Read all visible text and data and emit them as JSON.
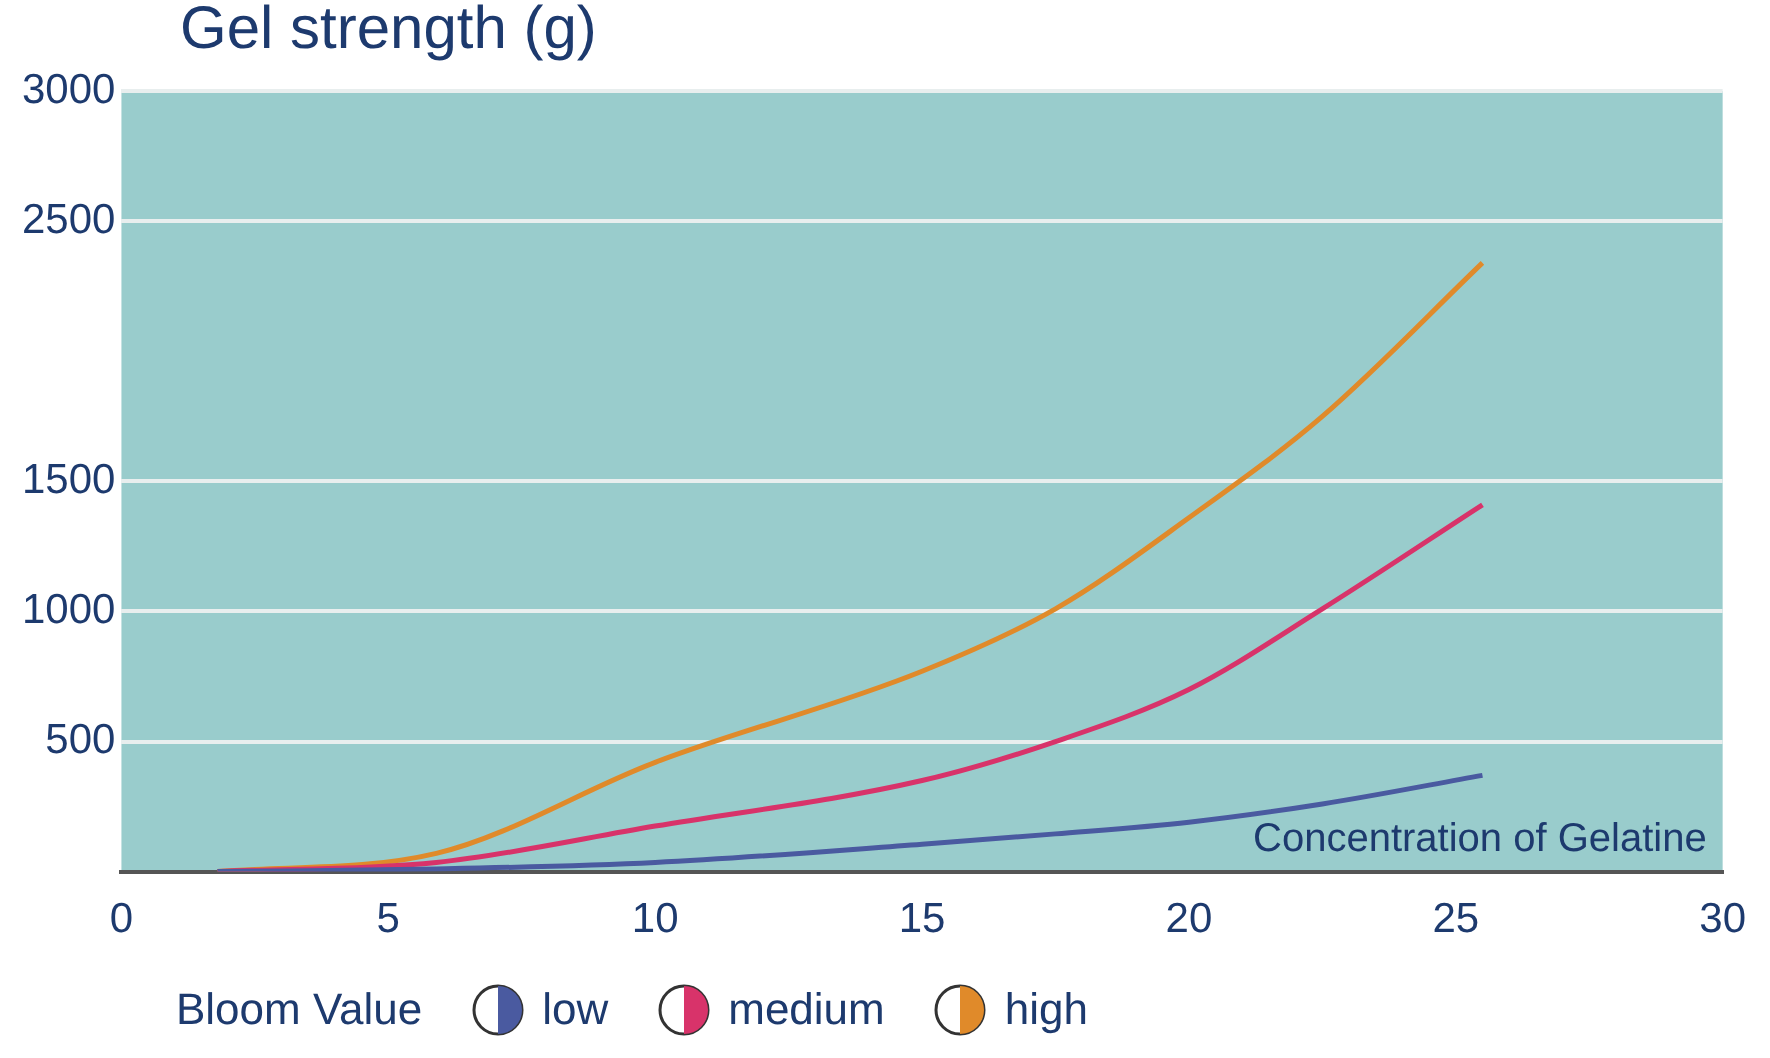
{
  "chart_data": {
    "type": "line",
    "title": "Gel strength (g)",
    "xlabel": "Concentration of Gelatine",
    "legend_title": "Bloom Value",
    "x": [
      1.8,
      5.9,
      10,
      15,
      17.5,
      20,
      22.5,
      25.5
    ],
    "series": [
      {
        "name": "low",
        "color": "#4a5aa0",
        "values": [
          0,
          10,
          35,
          105,
          145,
          190,
          260,
          370
        ]
      },
      {
        "name": "medium",
        "color": "#d8336a",
        "values": [
          0,
          35,
          175,
          350,
          500,
          700,
          1010,
          1410
        ]
      },
      {
        "name": "high",
        "color": "#e08a2a",
        "values": [
          0,
          70,
          420,
          770,
          1010,
          1360,
          1750,
          2340
        ]
      }
    ],
    "xlim": [
      0,
      30
    ],
    "xticks": [
      0,
      5,
      10,
      15,
      20,
      25,
      30
    ],
    "ylim": [
      0,
      3000
    ],
    "yticks": [
      500,
      1000,
      1500,
      2500,
      3000
    ],
    "grid": "y",
    "legend": "bottom",
    "marker": "none",
    "line_style": "solid"
  }
}
